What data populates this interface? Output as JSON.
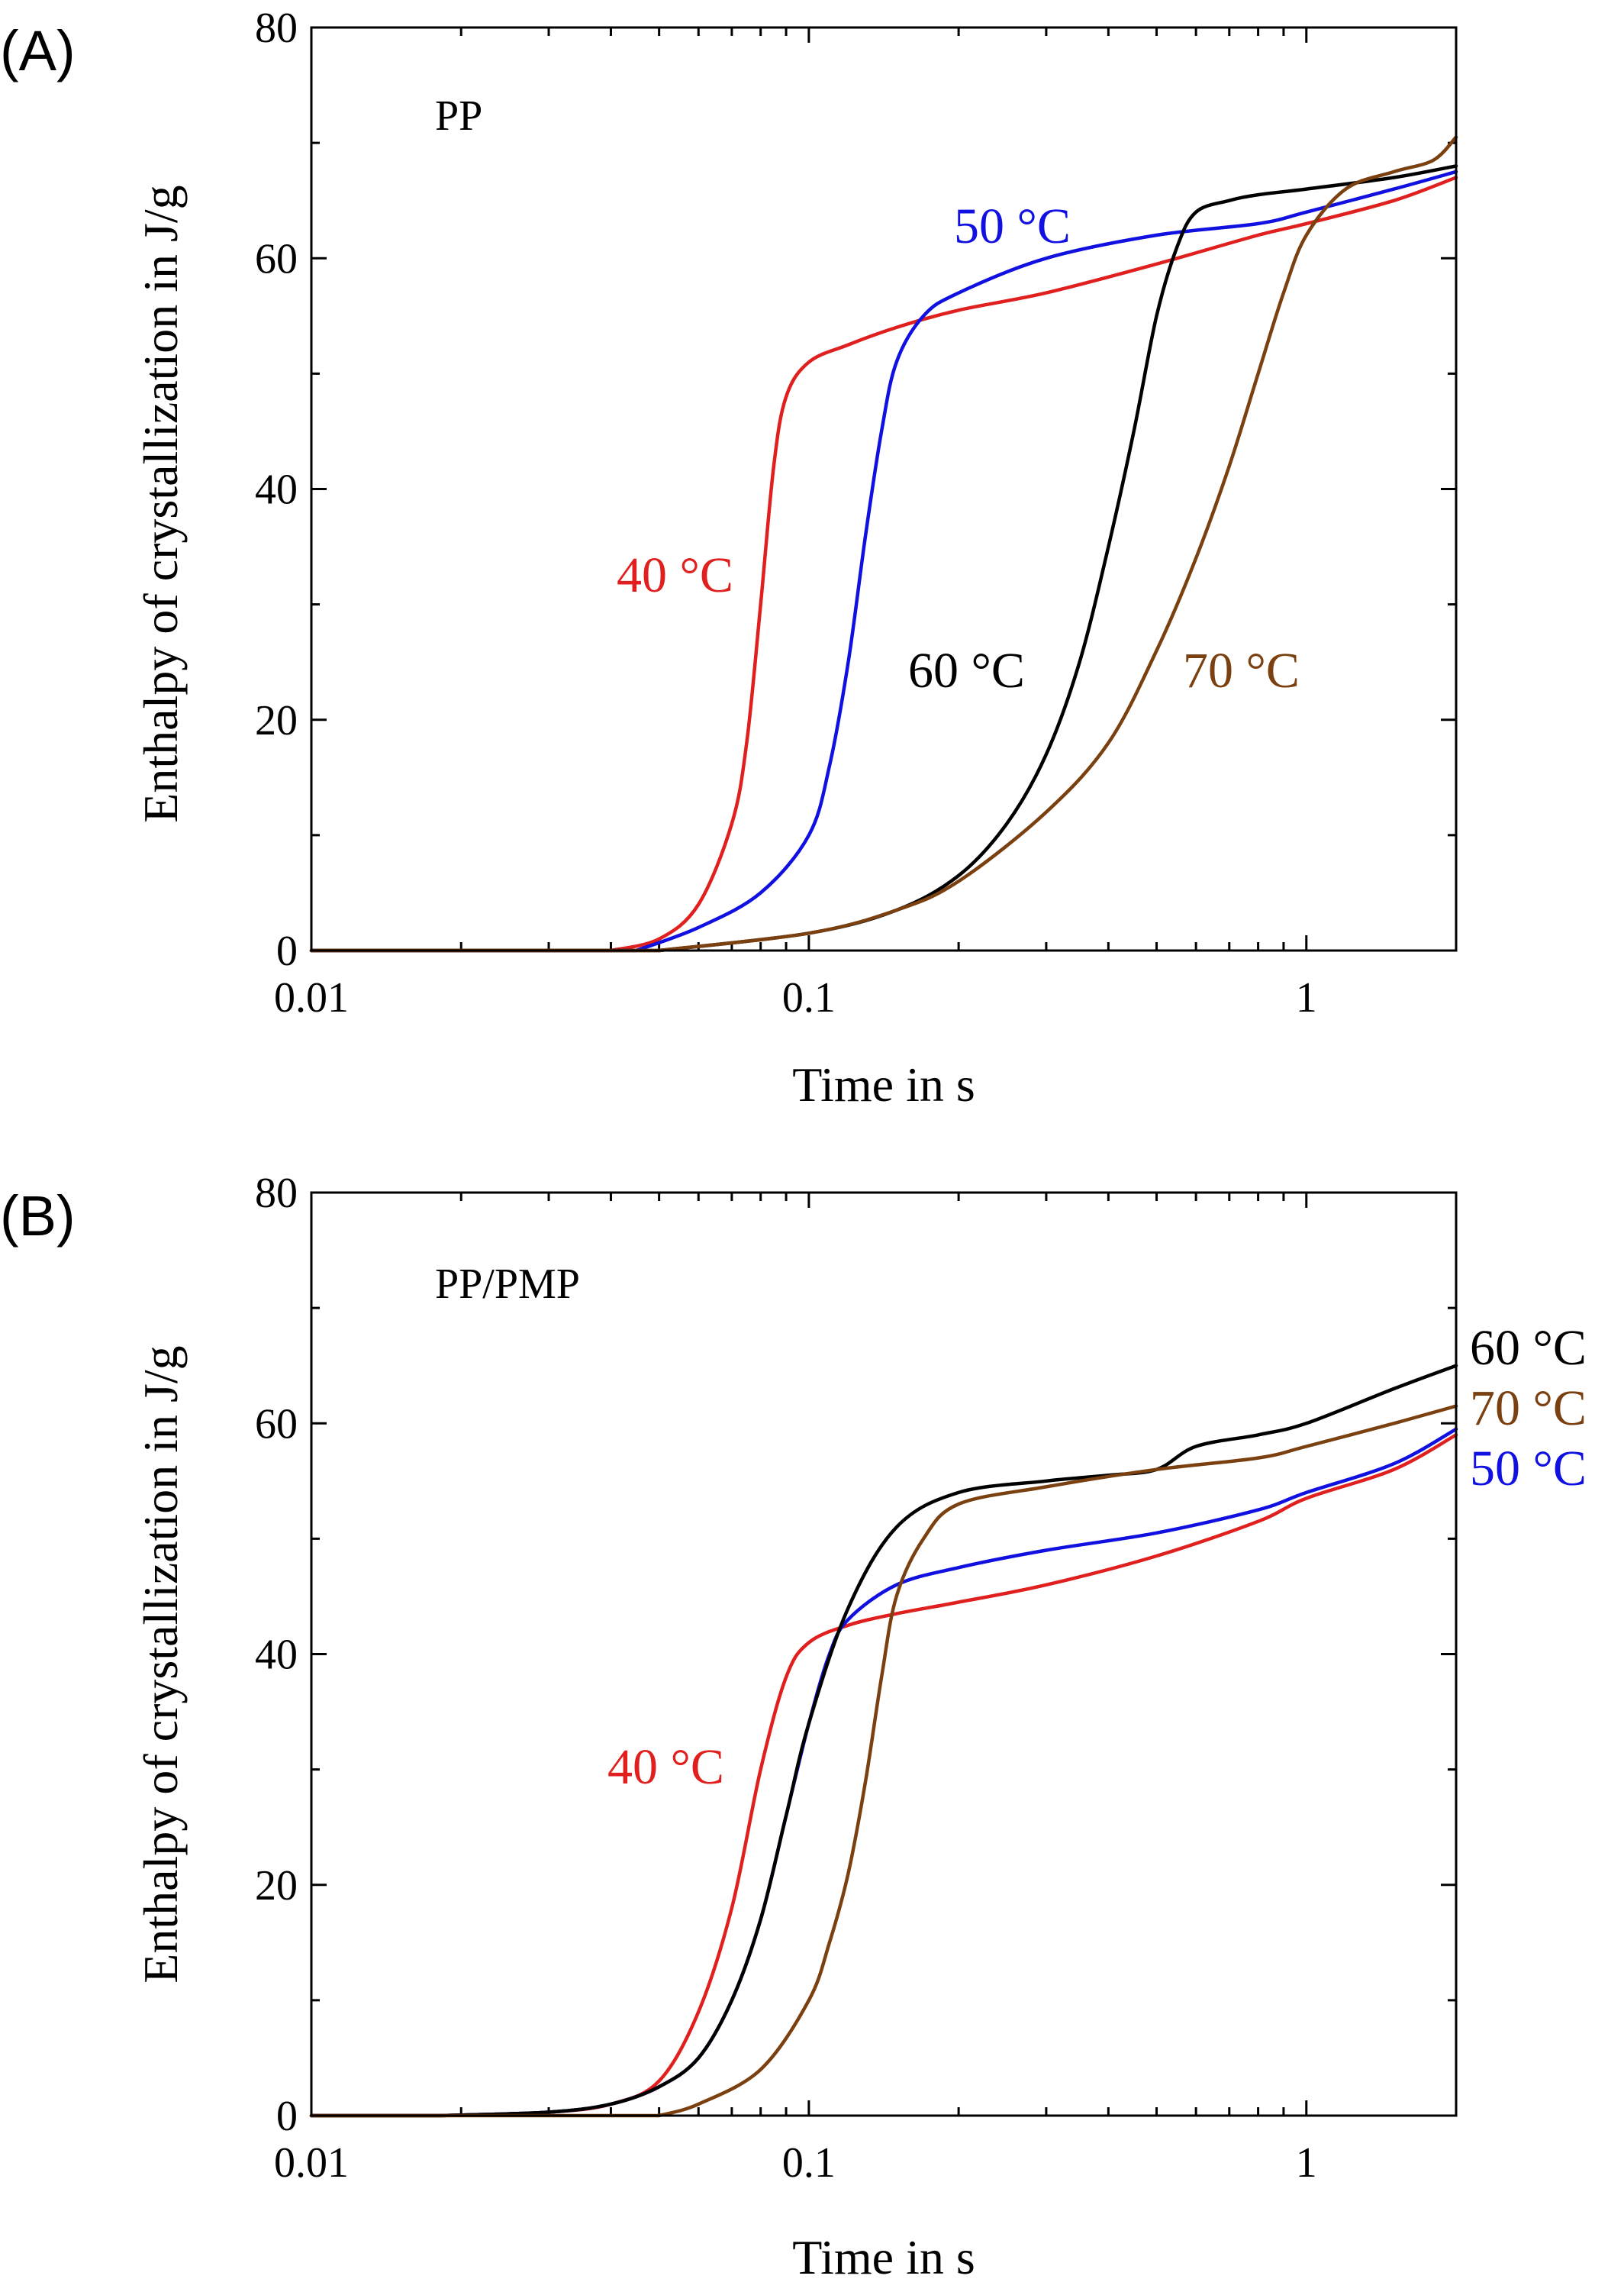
{
  "chart_data": [
    {
      "type": "line",
      "panel_label": "(A)",
      "annotation": "PP",
      "xlabel": "Time in s",
      "ylabel": "Enthalpy of crystallization in J/g",
      "xscale": "log",
      "xlim": [
        0.01,
        2
      ],
      "ylim": [
        0,
        80
      ],
      "xticks": [
        0.01,
        0.1,
        1
      ],
      "xtick_labels": [
        "0.01",
        "0.1",
        "1"
      ],
      "yticks": [
        0,
        20,
        40,
        60,
        80
      ],
      "ytick_labels": [
        "0",
        "20",
        "40",
        "60",
        "80"
      ],
      "grid": false,
      "series": [
        {
          "name": "40 °C",
          "color": "#e0201e",
          "x": [
            0.04,
            0.05,
            0.06,
            0.07,
            0.075,
            0.08,
            0.085,
            0.09,
            0.1,
            0.12,
            0.15,
            0.2,
            0.3,
            0.5,
            0.8,
            1.0,
            1.5,
            2.0
          ],
          "y": [
            0,
            1,
            4,
            11,
            18,
            30,
            42,
            48,
            51,
            52.5,
            54,
            55.5,
            57,
            59.5,
            62,
            63,
            65,
            67
          ]
        },
        {
          "name": "50 °C",
          "color": "#1010e0",
          "x": [
            0.045,
            0.06,
            0.08,
            0.1,
            0.11,
            0.12,
            0.13,
            0.14,
            0.15,
            0.17,
            0.2,
            0.3,
            0.5,
            0.8,
            1.0,
            1.5,
            2.0
          ],
          "y": [
            0,
            2,
            5,
            10,
            16,
            25,
            36,
            45,
            51,
            55,
            57,
            60,
            62,
            63,
            64,
            66,
            67.5
          ]
        },
        {
          "name": "60 °C",
          "color": "#000000",
          "x": [
            0.05,
            0.1,
            0.15,
            0.2,
            0.25,
            0.3,
            0.35,
            0.4,
            0.45,
            0.5,
            0.55,
            0.6,
            0.7,
            0.8,
            1.0,
            1.5,
            2.0
          ],
          "y": [
            0,
            1.5,
            3.5,
            6.5,
            11,
            17,
            25,
            35,
            45,
            55,
            61,
            64,
            65,
            65.5,
            66,
            67,
            68
          ]
        },
        {
          "name": "70 °C",
          "color": "#7a4010",
          "x": [
            0.05,
            0.1,
            0.15,
            0.2,
            0.3,
            0.4,
            0.5,
            0.6,
            0.7,
            0.8,
            0.9,
            1.0,
            1.2,
            1.5,
            1.8,
            2.0
          ],
          "y": [
            0,
            1.5,
            3.5,
            6,
            12,
            18,
            26,
            34,
            42,
            50,
            57,
            62,
            66,
            67.5,
            68.5,
            70.5
          ]
        }
      ],
      "curve_labels": [
        "40 °C",
        "50 °C",
        "60 °C",
        "70 °C"
      ]
    },
    {
      "type": "line",
      "panel_label": "(B)",
      "annotation": "PP/PMP",
      "xlabel": "Time in s",
      "ylabel": "Enthalpy of crystallization in J/g",
      "xscale": "log",
      "xlim": [
        0.01,
        2
      ],
      "ylim": [
        0,
        80
      ],
      "xticks": [
        0.01,
        0.1,
        1
      ],
      "xtick_labels": [
        "0.01",
        "0.1",
        "1"
      ],
      "yticks": [
        0,
        20,
        40,
        60,
        80
      ],
      "ytick_labels": [
        "0",
        "20",
        "40",
        "60",
        "80"
      ],
      "grid": false,
      "series": [
        {
          "name": "40 °C",
          "color": "#e0201e",
          "x": [
            0.018,
            0.03,
            0.04,
            0.05,
            0.06,
            0.07,
            0.08,
            0.09,
            0.1,
            0.12,
            0.15,
            0.2,
            0.3,
            0.5,
            0.8,
            1.0,
            1.5,
            2.0
          ],
          "y": [
            0,
            0.3,
            1,
            3,
            9,
            18,
            30,
            38,
            41,
            42.5,
            43.5,
            44.5,
            46,
            48.5,
            51.5,
            53.5,
            56,
            59
          ]
        },
        {
          "name": "50 °C",
          "color": "#1010e0",
          "x": [
            0.018,
            0.03,
            0.04,
            0.05,
            0.06,
            0.07,
            0.08,
            0.09,
            0.1,
            0.11,
            0.12,
            0.15,
            0.2,
            0.3,
            0.5,
            0.8,
            1.0,
            1.5,
            2.0
          ],
          "y": [
            0,
            0.3,
            1,
            2.5,
            5,
            10,
            17,
            26,
            34,
            40,
            43,
            46,
            47.5,
            49,
            50.5,
            52.5,
            54,
            56.5,
            59.5
          ]
        },
        {
          "name": "60 °C",
          "color": "#000000",
          "x": [
            0.018,
            0.03,
            0.04,
            0.05,
            0.06,
            0.07,
            0.08,
            0.09,
            0.1,
            0.12,
            0.15,
            0.2,
            0.3,
            0.4,
            0.5,
            0.6,
            0.8,
            1.0,
            1.5,
            2.0
          ],
          "y": [
            0,
            0.3,
            1,
            2.5,
            5,
            10,
            17,
            26,
            34,
            44,
            51,
            54,
            55,
            55.5,
            56,
            58,
            59,
            60,
            63,
            65
          ]
        },
        {
          "name": "70 °C",
          "color": "#7a4010",
          "x": [
            0.05,
            0.06,
            0.08,
            0.1,
            0.11,
            0.12,
            0.13,
            0.14,
            0.15,
            0.17,
            0.2,
            0.3,
            0.5,
            0.8,
            1.0,
            1.5,
            2.0
          ],
          "y": [
            0,
            1,
            4,
            10,
            15,
            21,
            29,
            38,
            45,
            50,
            53,
            54.5,
            56,
            57,
            58,
            60,
            61.5
          ]
        }
      ],
      "curve_labels": [
        "60 °C",
        "70 °C",
        "50 °C",
        "40 °C"
      ]
    }
  ]
}
